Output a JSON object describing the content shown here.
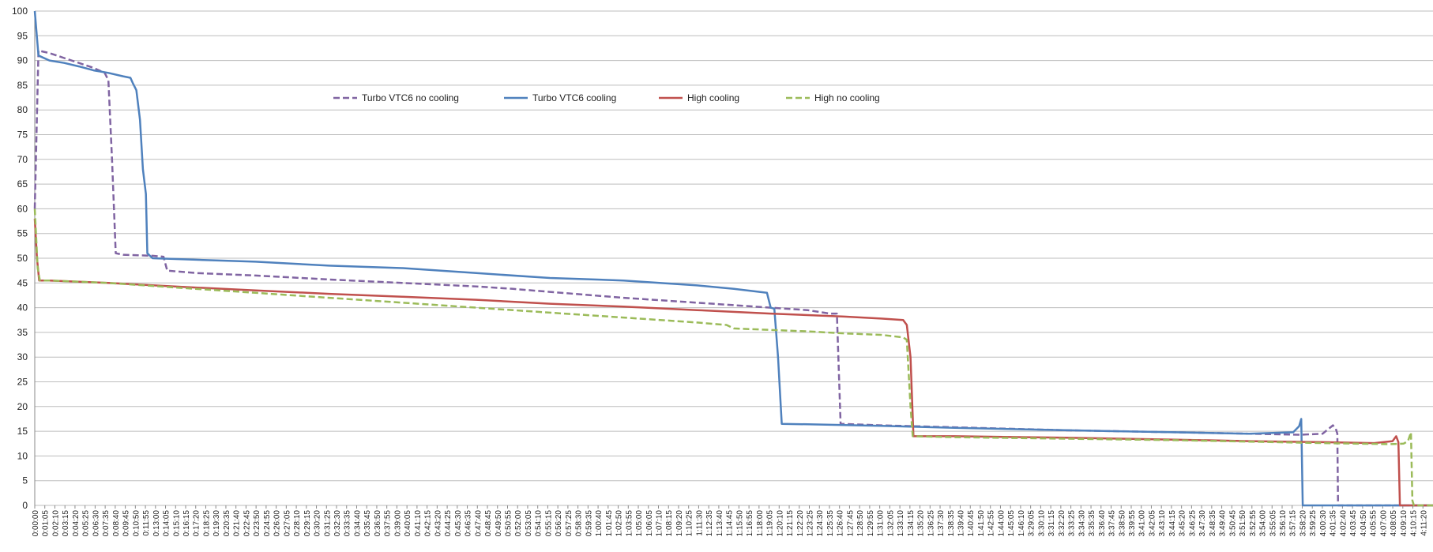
{
  "chart_data": {
    "type": "line",
    "title": "",
    "xlabel": "",
    "ylabel": "",
    "ylim": [
      0,
      100
    ],
    "yticks": [
      "0",
      "5",
      "10",
      "15",
      "20",
      "25",
      "30",
      "35",
      "40",
      "45",
      "50",
      "55",
      "60",
      "65",
      "70",
      "75",
      "80",
      "85",
      "90",
      "95",
      "100"
    ],
    "x_tick_labels": [
      "0:00:00",
      "0:01:05",
      "0:02:10",
      "0:03:15",
      "0:04:20",
      "0:05:25",
      "0:06:30",
      "0:07:35",
      "0:08:40",
      "0:09:45",
      "0:10:50",
      "0:11:55",
      "0:13:00",
      "0:14:05",
      "0:15:10",
      "0:16:15",
      "0:17:20",
      "0:18:25",
      "0:19:30",
      "0:20:35",
      "0:21:40",
      "0:22:45",
      "0:23:50",
      "0:24:55",
      "0:26:00",
      "0:27:05",
      "0:28:10",
      "0:29:15",
      "0:30:20",
      "0:31:25",
      "0:32:30",
      "0:33:35",
      "0:34:40",
      "0:35:45",
      "0:36:50",
      "0:37:55",
      "0:39:00",
      "0:40:05",
      "0:41:10",
      "0:42:15",
      "0:43:20",
      "0:44:25",
      "0:45:30",
      "0:46:35",
      "0:47:40",
      "0:48:45",
      "0:49:50",
      "0:50:55",
      "0:52:00",
      "0:53:05",
      "0:54:10",
      "0:55:15",
      "0:56:20",
      "0:57:25",
      "0:58:30",
      "0:59:35",
      "1:00:40",
      "1:01:45",
      "1:02:50",
      "1:03:55",
      "1:05:00",
      "1:06:05",
      "1:07:10",
      "1:08:15",
      "1:09:20",
      "1:10:25",
      "1:11:30",
      "1:12:35",
      "1:13:40",
      "1:14:45",
      "1:15:50",
      "1:16:55",
      "1:18:00",
      "1:19:05",
      "1:20:10",
      "1:21:15",
      "1:22:20",
      "1:23:25",
      "1:24:30",
      "1:25:35",
      "1:26:40",
      "1:27:45",
      "1:28:50",
      "1:29:55",
      "1:31:00",
      "1:32:05",
      "1:33:10",
      "1:34:15",
      "1:35:20",
      "1:36:25",
      "1:37:30",
      "1:38:35",
      "1:39:40",
      "1:40:45",
      "1:41:50",
      "1:42:55",
      "1:44:00",
      "1:45:05",
      "1:46:10",
      "3:29:05",
      "3:30:10",
      "3:31:15",
      "3:32:20",
      "3:33:25",
      "3:34:30",
      "3:35:35",
      "3:36:40",
      "3:37:45",
      "3:38:50",
      "3:39:55",
      "3:41:00",
      "3:42:05",
      "3:43:10",
      "3:44:15",
      "3:45:20",
      "3:46:25",
      "3:47:30",
      "3:48:35",
      "3:49:40",
      "3:50:45",
      "3:51:50",
      "3:52:55",
      "3:54:00",
      "3:55:05",
      "3:56:10",
      "3:57:15",
      "3:58:20",
      "3:59:25",
      "4:00:30",
      "4:01:35",
      "4:02:40",
      "4:03:45",
      "4:04:50",
      "4:05:55",
      "4:07:00",
      "4:08:05",
      "4:09:10",
      "4:10:15",
      "4:11:20"
    ],
    "legend": {
      "placement": "top-center",
      "entries": [
        {
          "name": "Turbo VTC6 no cooling",
          "color": "#8064a2",
          "dash": "dashed"
        },
        {
          "name": "Turbo VTC6 cooling",
          "color": "#4f81bd",
          "dash": "solid"
        },
        {
          "name": "High cooling",
          "color": "#c0504d",
          "dash": "solid"
        },
        {
          "name": "High no cooling",
          "color": "#9bbb59",
          "dash": "dashed"
        }
      ]
    },
    "series": [
      {
        "name": "Turbo VTC6 no cooling",
        "color": "#8064a2",
        "dash": "dashed",
        "points": [
          [
            0,
            60
          ],
          [
            0.5,
            92
          ],
          [
            2,
            91.5
          ],
          [
            4,
            90.5
          ],
          [
            6,
            89.5
          ],
          [
            8,
            88.5
          ],
          [
            9.5,
            87.5
          ],
          [
            10,
            86
          ],
          [
            10.5,
            70
          ],
          [
            11,
            51
          ],
          [
            12,
            50.7
          ],
          [
            14,
            50.6
          ],
          [
            16,
            50.5
          ],
          [
            17.5,
            50.3
          ],
          [
            18,
            47.5
          ],
          [
            22,
            47
          ],
          [
            30,
            46.5
          ],
          [
            40,
            45.7
          ],
          [
            50,
            45
          ],
          [
            60,
            44.3
          ],
          [
            65,
            43.8
          ],
          [
            70,
            43.2
          ],
          [
            80,
            42
          ],
          [
            90,
            41
          ],
          [
            100,
            40
          ],
          [
            105,
            39.5
          ],
          [
            108,
            38.8
          ],
          [
            109,
            38.8
          ],
          [
            109.5,
            16.5
          ],
          [
            115,
            16.2
          ],
          [
            125,
            15.8
          ],
          [
            140,
            15.2
          ],
          [
            155,
            14.8
          ],
          [
            165,
            14.5
          ],
          [
            172,
            14.3
          ],
          [
            175,
            14.5
          ],
          [
            176.4,
            16.2
          ],
          [
            176.8,
            15.5
          ],
          [
            177,
            14.5
          ],
          [
            177.1,
            0
          ],
          [
            190,
            0
          ]
        ]
      },
      {
        "name": "Turbo VTC6 cooling",
        "color": "#4f81bd",
        "dash": "solid",
        "points": [
          [
            0,
            100
          ],
          [
            0.5,
            91
          ],
          [
            2,
            90
          ],
          [
            4,
            89.5
          ],
          [
            6,
            88.8
          ],
          [
            8,
            88
          ],
          [
            10,
            87.5
          ],
          [
            12,
            86.8
          ],
          [
            13,
            86.5
          ],
          [
            13.3,
            85.5
          ],
          [
            13.8,
            84
          ],
          [
            14.3,
            78
          ],
          [
            14.7,
            68
          ],
          [
            15.1,
            63
          ],
          [
            15.3,
            51
          ],
          [
            16,
            50
          ],
          [
            20,
            49.8
          ],
          [
            30,
            49.3
          ],
          [
            40,
            48.5
          ],
          [
            50,
            48
          ],
          [
            60,
            47
          ],
          [
            70,
            46
          ],
          [
            80,
            45.5
          ],
          [
            90,
            44.5
          ],
          [
            95,
            43.8
          ],
          [
            99.5,
            43
          ],
          [
            100,
            40
          ],
          [
            100.5,
            39.8
          ],
          [
            101,
            30
          ],
          [
            101.5,
            16.5
          ],
          [
            105,
            16.4
          ],
          [
            115,
            16.1
          ],
          [
            125,
            15.7
          ],
          [
            140,
            15.2
          ],
          [
            155,
            14.8
          ],
          [
            165,
            14.5
          ],
          [
            171,
            14.8
          ],
          [
            171.8,
            16
          ],
          [
            172.1,
            17.5
          ],
          [
            172.3,
            0
          ],
          [
            190,
            0
          ]
        ]
      },
      {
        "name": "High cooling",
        "color": "#c0504d",
        "dash": "solid",
        "points": [
          [
            0,
            58
          ],
          [
            0.3,
            50
          ],
          [
            0.6,
            45.5
          ],
          [
            2,
            45.5
          ],
          [
            10,
            45
          ],
          [
            20,
            44.2
          ],
          [
            30,
            43.5
          ],
          [
            40,
            42.8
          ],
          [
            50,
            42.2
          ],
          [
            60,
            41.6
          ],
          [
            70,
            40.8
          ],
          [
            80,
            40.2
          ],
          [
            90,
            39.5
          ],
          [
            100,
            38.8
          ],
          [
            110,
            38.2
          ],
          [
            115,
            37.8
          ],
          [
            118,
            37.5
          ],
          [
            118.5,
            36.5
          ],
          [
            119,
            30
          ],
          [
            119.4,
            14
          ],
          [
            125,
            14
          ],
          [
            140,
            13.7
          ],
          [
            155,
            13.3
          ],
          [
            165,
            13
          ],
          [
            175,
            12.8
          ],
          [
            182,
            12.6
          ],
          [
            184.5,
            13
          ],
          [
            185,
            14
          ],
          [
            185.3,
            12.8
          ],
          [
            185.5,
            0
          ],
          [
            190,
            0
          ]
        ]
      },
      {
        "name": "High no cooling",
        "color": "#9bbb59",
        "dash": "dashed",
        "points": [
          [
            0,
            60
          ],
          [
            0.4,
            48
          ],
          [
            0.7,
            45.5
          ],
          [
            2,
            45.5
          ],
          [
            10,
            45
          ],
          [
            20,
            44
          ],
          [
            30,
            43
          ],
          [
            40,
            42
          ],
          [
            50,
            41
          ],
          [
            60,
            40
          ],
          [
            70,
            39
          ],
          [
            80,
            38
          ],
          [
            90,
            37
          ],
          [
            94,
            36.5
          ],
          [
            95,
            35.8
          ],
          [
            100,
            35.5
          ],
          [
            105,
            35.2
          ],
          [
            110,
            34.8
          ],
          [
            115,
            34.5
          ],
          [
            118,
            34
          ],
          [
            118.5,
            33.5
          ],
          [
            119,
            20
          ],
          [
            119.3,
            14
          ],
          [
            125,
            13.8
          ],
          [
            140,
            13.5
          ],
          [
            155,
            13.2
          ],
          [
            165,
            12.9
          ],
          [
            175,
            12.6
          ],
          [
            184,
            12.4
          ],
          [
            186,
            12.5
          ],
          [
            186.6,
            13
          ],
          [
            187,
            14.8
          ],
          [
            187.2,
            1
          ],
          [
            187.4,
            0
          ],
          [
            190,
            0
          ]
        ]
      }
    ]
  }
}
